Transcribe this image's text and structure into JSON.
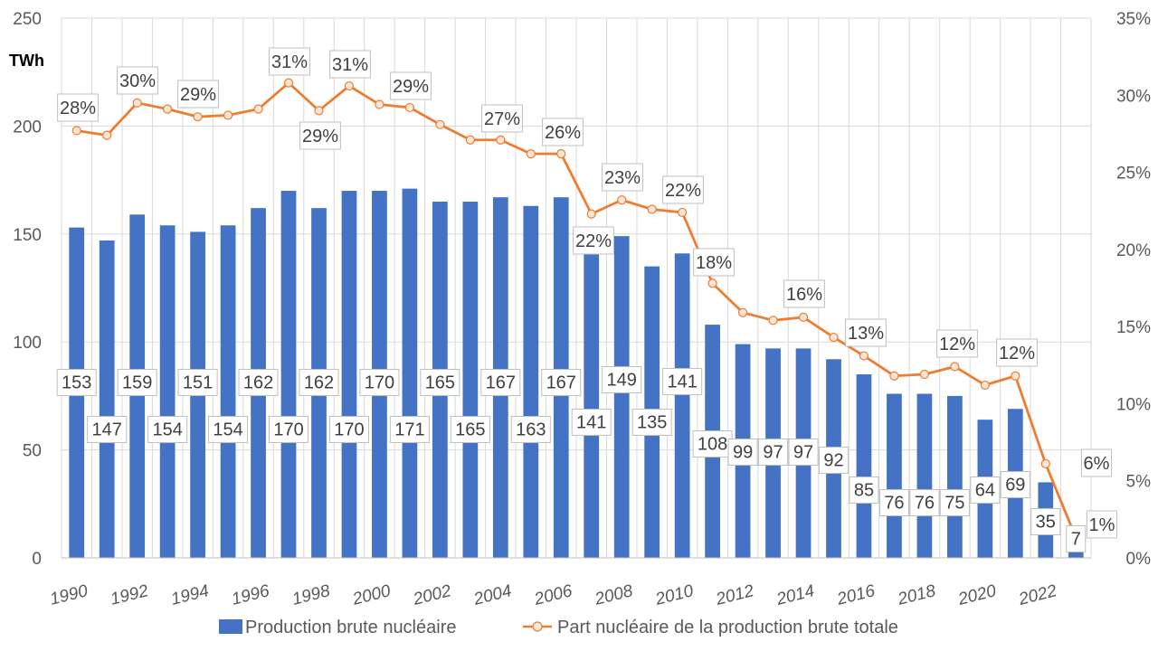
{
  "chart_data": {
    "type": "bar+line",
    "unit_label": "TWh",
    "categories": [
      "1990",
      "1991",
      "1992",
      "1993",
      "1994",
      "1995",
      "1996",
      "1997",
      "1998",
      "1999",
      "2000",
      "2001",
      "2002",
      "2003",
      "2004",
      "2005",
      "2006",
      "2007",
      "2008",
      "2009",
      "2010",
      "2011",
      "2012",
      "2013",
      "2014",
      "2015",
      "2016",
      "2017",
      "2018",
      "2019",
      "2020",
      "2021",
      "2022",
      "2023"
    ],
    "x_tick_labels": [
      "1990",
      "1992",
      "1994",
      "1996",
      "1998",
      "2000",
      "2002",
      "2004",
      "2006",
      "2008",
      "2010",
      "2012",
      "2014",
      "2016",
      "2018",
      "2020",
      "2022"
    ],
    "series": [
      {
        "name": "Production brute nucléaire",
        "type": "bar",
        "axis": "left",
        "color": "#4472C4",
        "values": [
          153,
          147,
          159,
          154,
          151,
          154,
          162,
          170,
          162,
          170,
          170,
          171,
          165,
          165,
          167,
          163,
          167,
          141,
          149,
          135,
          141,
          108,
          99,
          97,
          97,
          92,
          85,
          76,
          76,
          75,
          64,
          69,
          35,
          7
        ]
      },
      {
        "name": "Part nucléaire de la production brute totale",
        "type": "line",
        "axis": "right",
        "color": "#ED7D31",
        "marker_fill": "#FBE5D6",
        "values": [
          27.7,
          27.4,
          29.5,
          29.1,
          28.6,
          28.7,
          29.1,
          30.8,
          29.0,
          30.6,
          29.4,
          29.2,
          28.1,
          27.1,
          27.1,
          26.2,
          26.2,
          22.3,
          23.2,
          22.6,
          22.4,
          17.8,
          15.9,
          15.4,
          15.6,
          14.3,
          13.1,
          11.8,
          11.9,
          12.4,
          11.2,
          11.8,
          6.1,
          1.3
        ],
        "labels": [
          "28%",
          null,
          "30%",
          null,
          "29%",
          null,
          null,
          "31%",
          "29%",
          "31%",
          "29%",
          null,
          null,
          null,
          "27%",
          null,
          "26%",
          "22%",
          "23%",
          null,
          "22%",
          "18%",
          null,
          null,
          "16%",
          null,
          "13%",
          null,
          null,
          "12%",
          null,
          "12%",
          "6%",
          "1%"
        ]
      }
    ],
    "ylim_left": [
      0,
      250
    ],
    "yticks_left": [
      "0",
      "50",
      "100",
      "150",
      "200",
      "250"
    ],
    "ylim_right": [
      0,
      35
    ],
    "yticks_right": [
      "0%",
      "5%",
      "10%",
      "15%",
      "20%",
      "25%",
      "30%",
      "35%"
    ],
    "grid": true,
    "legend_position": "bottom-center"
  }
}
